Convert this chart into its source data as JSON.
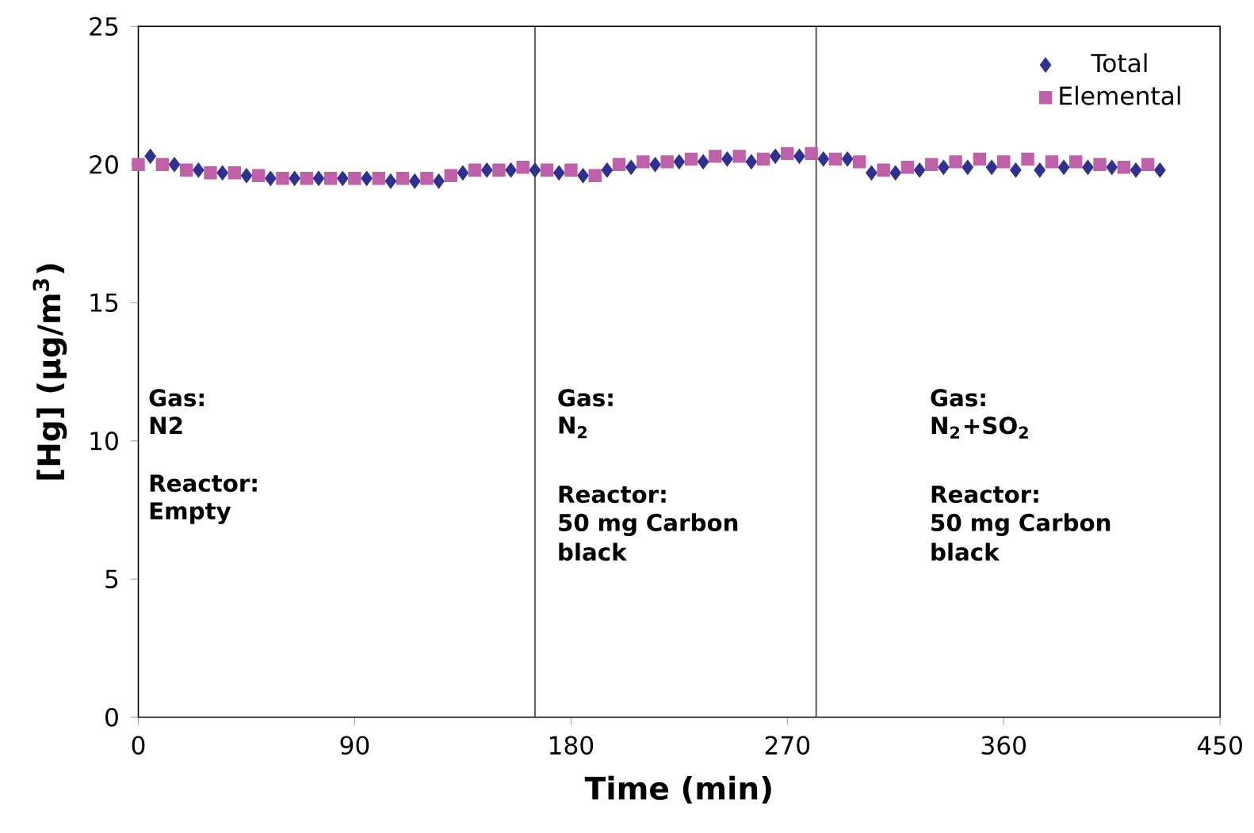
{
  "chart_data": {
    "type": "scatter",
    "xlabel": "Time (min)",
    "ylabel": "[Hg] (µg/m$^{3}$)",
    "xlim": [
      0,
      450
    ],
    "ylim": [
      0,
      25
    ],
    "xticks": [
      0,
      90,
      180,
      270,
      360,
      450
    ],
    "yticks": [
      0,
      5,
      10,
      15,
      20,
      25
    ],
    "grid": false,
    "legend": "top right",
    "series": [
      {
        "name": "Total",
        "color": "#2e3192",
        "marker": "diamond",
        "x": [
          5,
          15,
          25,
          35,
          45,
          55,
          65,
          75,
          85,
          95,
          105,
          115,
          125,
          135,
          145,
          155,
          165,
          175,
          185,
          195,
          205,
          215,
          225,
          235,
          245,
          255,
          265,
          275,
          285,
          295,
          305,
          315,
          325,
          335,
          345,
          355,
          365,
          375,
          385,
          395,
          405,
          415,
          425
        ],
        "values": [
          20.3,
          20.0,
          19.8,
          19.7,
          19.6,
          19.5,
          19.5,
          19.5,
          19.5,
          19.5,
          19.4,
          19.4,
          19.4,
          19.7,
          19.8,
          19.8,
          19.8,
          19.7,
          19.6,
          19.8,
          19.9,
          20.0,
          20.1,
          20.1,
          20.2,
          20.1,
          20.3,
          20.3,
          20.2,
          20.2,
          19.7,
          19.7,
          19.8,
          19.9,
          19.9,
          19.9,
          19.8,
          19.8,
          19.9,
          19.9,
          19.9,
          19.8,
          19.8
        ]
      },
      {
        "name": "Elemental",
        "color": "#c060a8",
        "marker": "square",
        "x": [
          0,
          10,
          20,
          30,
          40,
          50,
          60,
          70,
          80,
          90,
          100,
          110,
          120,
          130,
          140,
          150,
          160,
          170,
          180,
          190,
          200,
          210,
          220,
          230,
          240,
          250,
          260,
          270,
          280,
          290,
          300,
          310,
          320,
          330,
          340,
          350,
          360,
          370,
          380,
          390,
          400,
          410,
          420
        ],
        "values": [
          20.0,
          20.0,
          19.8,
          19.7,
          19.7,
          19.6,
          19.5,
          19.5,
          19.5,
          19.5,
          19.5,
          19.5,
          19.5,
          19.6,
          19.8,
          19.8,
          19.9,
          19.8,
          19.8,
          19.6,
          20.0,
          20.1,
          20.1,
          20.2,
          20.3,
          20.3,
          20.2,
          20.4,
          20.4,
          20.2,
          20.1,
          19.8,
          19.9,
          20.0,
          20.1,
          20.2,
          20.1,
          20.2,
          20.1,
          20.1,
          20.0,
          19.9,
          20.0
        ]
      }
    ],
    "ref_lines": [
      {
        "axis": "x",
        "value": 165,
        "color": "#555555"
      },
      {
        "axis": "x",
        "value": 282,
        "color": "#555555"
      }
    ],
    "annotations": [
      "Gas:",
      "N2",
      "Reactor:",
      "Empty",
      "Gas:",
      "N$_{2}$",
      "Reactor:",
      "50 mg Carbon black",
      "Gas:",
      "N$_{2}$+SO$_{2}$",
      "Reactor:",
      "50 mg Carbon black"
    ]
  }
}
